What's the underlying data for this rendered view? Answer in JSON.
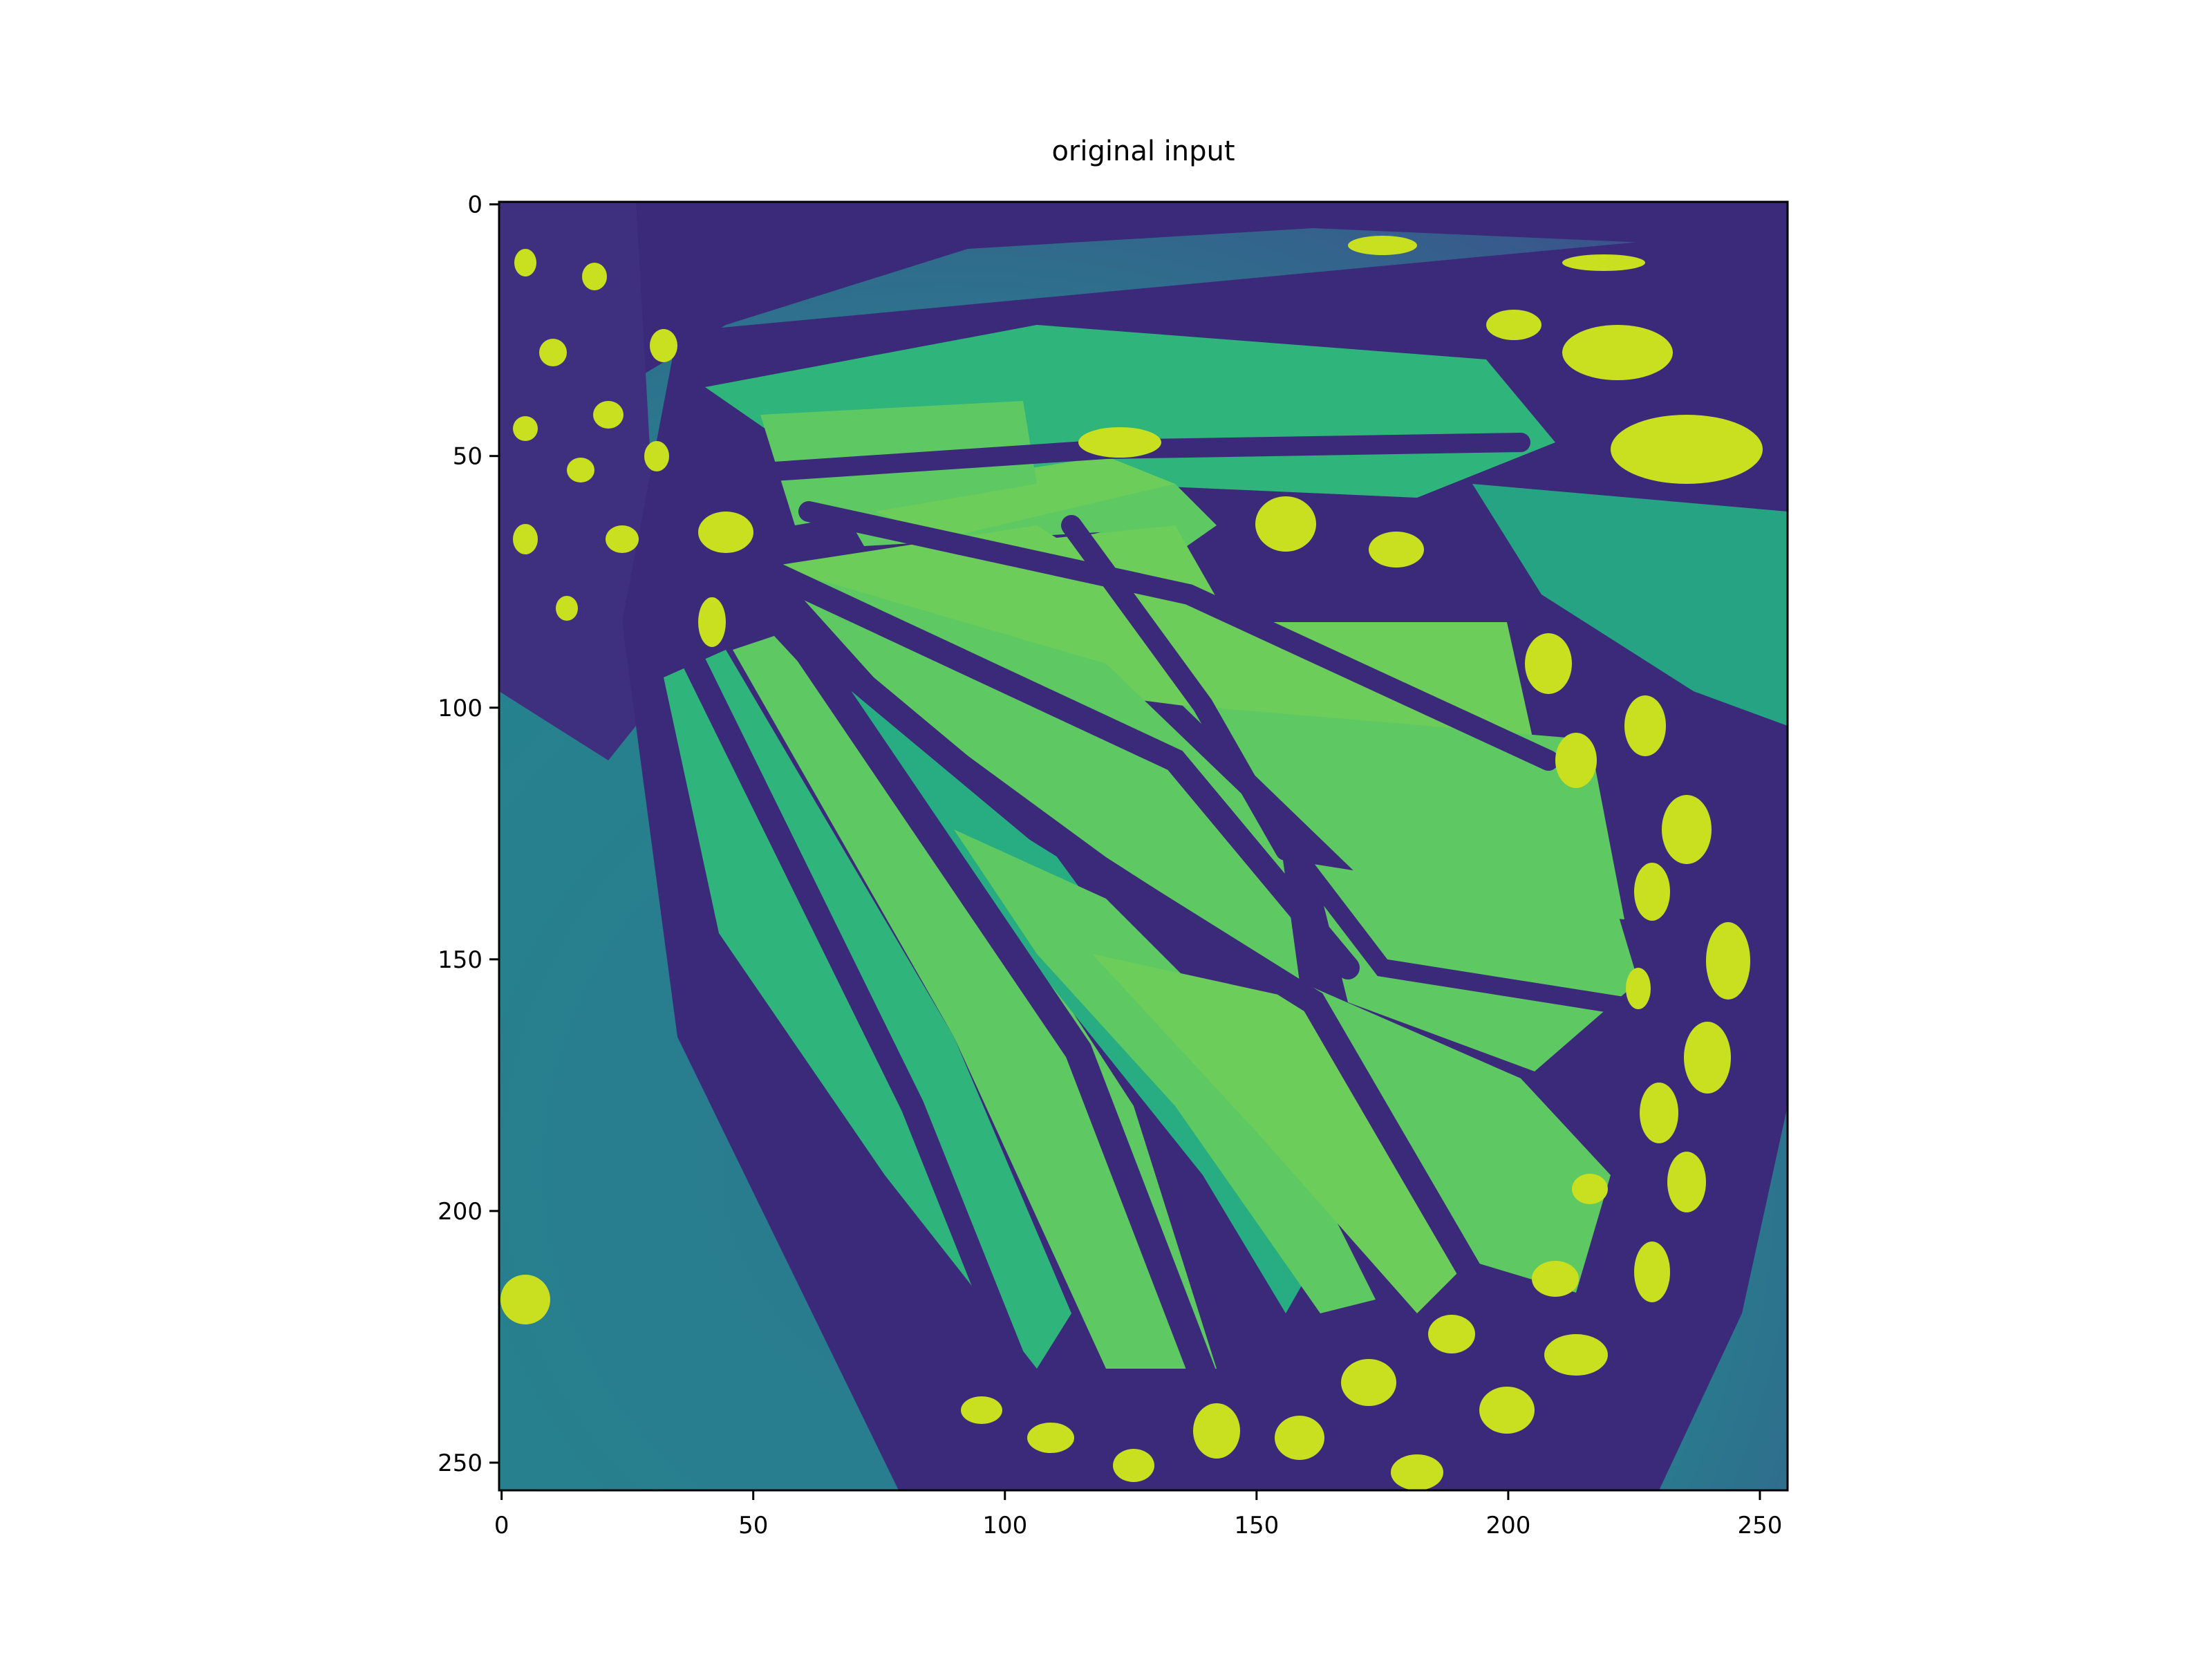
{
  "title": "original input",
  "image": {
    "type": "grayscale image rendered with viridis colormap",
    "subject": "close-up of a monarch butterfly wing",
    "shape": [
      256,
      256
    ]
  },
  "axes": {
    "x_ticks": [
      "0",
      "50",
      "100",
      "150",
      "200",
      "250"
    ],
    "y_ticks": [
      "0",
      "50",
      "100",
      "150",
      "200",
      "250"
    ],
    "xlim": [
      -0.5,
      255.5
    ],
    "ylim": [
      255.5,
      -0.5
    ]
  },
  "colors": {
    "background": "#440154",
    "wing_cell": "#5ec962",
    "vein": "#3b2a7a",
    "spot": "#c8e020",
    "backdrop": "#2a788e"
  }
}
